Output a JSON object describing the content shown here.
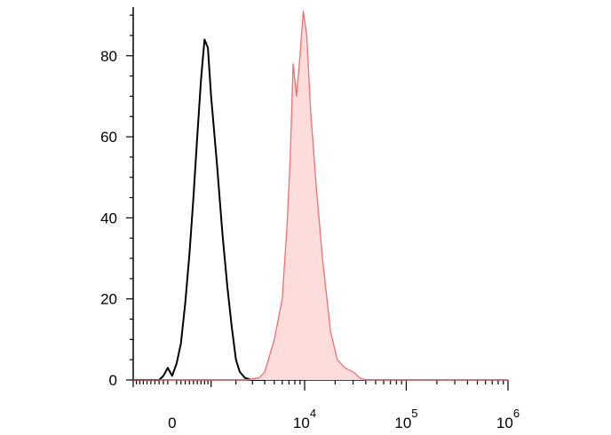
{
  "chart_data": {
    "type": "area",
    "title": "",
    "xlabel": "",
    "ylabel": "",
    "x_scale": "biexponential",
    "xlim": [
      -1000,
      1000000
    ],
    "ylim": [
      0,
      92
    ],
    "grid": false,
    "legend": "none",
    "y_ticks": [
      0,
      20,
      40,
      60,
      80
    ],
    "y_tick_labels": [
      "0",
      "20",
      "40",
      "60",
      "80"
    ],
    "x_tick_labels": [
      {
        "value": 0,
        "base": "0",
        "exp": ""
      },
      {
        "value": 10000,
        "base": "10",
        "exp": "4"
      },
      {
        "value": 100000,
        "base": "10",
        "exp": "5"
      },
      {
        "value": 1000000,
        "base": "10",
        "exp": "6"
      }
    ],
    "series": [
      {
        "color": "#000000",
        "fill": "none",
        "points": [
          [
            -1000,
            0
          ],
          [
            -300,
            0
          ],
          [
            -200,
            1
          ],
          [
            -100,
            3
          ],
          [
            0,
            1
          ],
          [
            100,
            4
          ],
          [
            200,
            9
          ],
          [
            300,
            19
          ],
          [
            400,
            31
          ],
          [
            500,
            45
          ],
          [
            600,
            60
          ],
          [
            700,
            74
          ],
          [
            800,
            84
          ],
          [
            900,
            82
          ],
          [
            1000,
            70
          ],
          [
            1200,
            53
          ],
          [
            1400,
            36
          ],
          [
            1600,
            23
          ],
          [
            1800,
            13
          ],
          [
            2000,
            5
          ],
          [
            2200,
            2
          ],
          [
            2500,
            0.5
          ],
          [
            3000,
            0
          ],
          [
            4000,
            0
          ]
        ]
      },
      {
        "color": "#f07070",
        "fill": "#fddcdc",
        "points": [
          [
            -1000,
            0
          ],
          [
            2500,
            0
          ],
          [
            3500,
            0.5
          ],
          [
            4000,
            2
          ],
          [
            5000,
            10
          ],
          [
            6000,
            20
          ],
          [
            6700,
            38
          ],
          [
            7200,
            55
          ],
          [
            7700,
            78
          ],
          [
            8300,
            70
          ],
          [
            9000,
            80
          ],
          [
            9700,
            91
          ],
          [
            10500,
            85
          ],
          [
            11500,
            66
          ],
          [
            13000,
            48
          ],
          [
            15000,
            30
          ],
          [
            18000,
            12
          ],
          [
            21000,
            5
          ],
          [
            25000,
            3
          ],
          [
            30000,
            2
          ],
          [
            35000,
            0.5
          ],
          [
            40000,
            0
          ],
          [
            1000000,
            0
          ]
        ]
      }
    ]
  }
}
